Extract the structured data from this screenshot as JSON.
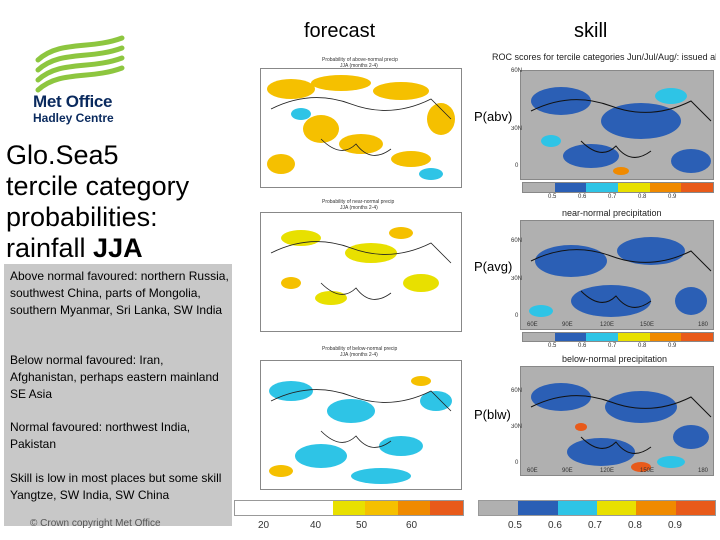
{
  "header": {
    "forecast": "forecast",
    "skill": "skill"
  },
  "logo": {
    "line1": "Met Office",
    "line2": "Hadley Centre",
    "color_green": "#8dc63f",
    "color_navy": "#0a2a5e"
  },
  "title": {
    "line1": "Glo.Sea5",
    "line2": "tercile category",
    "line3": "probabilities:",
    "line4_prefix": "rainfall ",
    "line4_bold": "JJA"
  },
  "notes": {
    "above": "Above normal favoured: northern Russia, southwest China, parts of Mongolia, southern Myanmar, Sri Lanka, SW India",
    "below": "Below normal favoured: Iran, Afghanistan, perhaps eastern mainland SE Asia",
    "normal": "Normal favoured: northwest India, Pakistan",
    "skill": "Skill is low in most places but some skill Yangtze, SW India, SW China",
    "copyright": "© Crown copyright   Met Office"
  },
  "panels": [
    {
      "forecast_title": "Probability of above-normal precip",
      "forecast_sub": "JJA (months 2-4)",
      "skill_title": "ROC scores for tercile categories Jun/Jul/Aug/: issued above-normal precipitation",
      "label": "P(abv)",
      "forecast_color": "#f5c000"
    },
    {
      "forecast_title": "Probability of near-normal precip",
      "forecast_sub": "JJA (months 2-4)",
      "skill_title": "near-normal precipitation",
      "label": "P(avg)",
      "forecast_color": "#e8e000"
    },
    {
      "forecast_title": "Probability of below-normal precip",
      "forecast_sub": "JJA (months 2-4)",
      "skill_title": "below-normal precipitation",
      "label": "P(blw)",
      "forecast_color": "#2ec4e6"
    }
  ],
  "map_ticks": {
    "lat": [
      "60N",
      "30N",
      "0"
    ],
    "lon_skill": [
      "60E",
      "90E",
      "120E",
      "150E",
      "180"
    ]
  },
  "skill_colorbar": {
    "labels": [
      "0.5",
      "0.6",
      "0.7",
      "0.8",
      "0.9"
    ]
  },
  "forecast_colorbar": {
    "labels": [
      "20",
      "40",
      "50",
      "60"
    ]
  },
  "bottom_skill_bar": {
    "labels": [
      "0.5",
      "0.6",
      "0.7",
      "0.8",
      "0.9"
    ]
  }
}
